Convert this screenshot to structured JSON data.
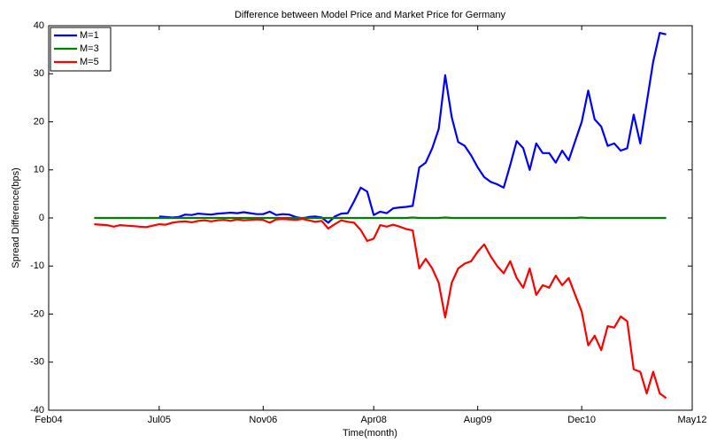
{
  "chart_data": {
    "type": "line",
    "title": "Difference between Model Price and Market Price for Germany",
    "xlabel": "Time(month)",
    "ylabel": "Spread Difference(bps)",
    "x": [
      "2004-09",
      "2004-10",
      "2004-11",
      "2004-12",
      "2005-01",
      "2005-02",
      "2005-03",
      "2005-04",
      "2005-05",
      "2005-06",
      "2005-07",
      "2005-08",
      "2005-09",
      "2005-10",
      "2005-11",
      "2005-12",
      "2006-01",
      "2006-02",
      "2006-03",
      "2006-04",
      "2006-05",
      "2006-06",
      "2006-07",
      "2006-08",
      "2006-09",
      "2006-10",
      "2006-11",
      "2006-12",
      "2007-01",
      "2007-02",
      "2007-03",
      "2007-04",
      "2007-05",
      "2007-06",
      "2007-07",
      "2007-08",
      "2007-09",
      "2007-10",
      "2007-11",
      "2007-12",
      "2008-01",
      "2008-02",
      "2008-03",
      "2008-04",
      "2008-05",
      "2008-06",
      "2008-07",
      "2008-08",
      "2008-09",
      "2008-10",
      "2008-11",
      "2008-12",
      "2009-01",
      "2009-02",
      "2009-03",
      "2009-04",
      "2009-05",
      "2009-06",
      "2009-07",
      "2009-08",
      "2009-09",
      "2009-10",
      "2009-11",
      "2009-12",
      "2010-01",
      "2010-02",
      "2010-03",
      "2010-04",
      "2010-05",
      "2010-06",
      "2010-07",
      "2010-08",
      "2010-09",
      "2010-10",
      "2010-11",
      "2010-12",
      "2011-01",
      "2011-02",
      "2011-03",
      "2011-04",
      "2011-05",
      "2011-06",
      "2011-07",
      "2011-08",
      "2011-09",
      "2011-10",
      "2011-11",
      "2011-12",
      "2012-01"
    ],
    "series": [
      {
        "name": "M=1",
        "color": "#0000ff",
        "values": [
          null,
          null,
          null,
          null,
          null,
          null,
          null,
          null,
          null,
          null,
          0.3,
          0.2,
          0.1,
          0.2,
          0.7,
          0.6,
          0.9,
          0.8,
          0.7,
          0.9,
          1.0,
          1.1,
          1.0,
          1.2,
          1.0,
          0.8,
          0.8,
          1.3,
          0.6,
          0.8,
          0.7,
          0.2,
          -0.1,
          0.2,
          0.3,
          0.1,
          -1.0,
          0.3,
          0.9,
          1.0,
          3.5,
          6.3,
          5.5,
          0.6,
          1.3,
          1.0,
          2.0,
          2.2,
          2.3,
          2.5,
          10.5,
          11.5,
          14.5,
          18.5,
          29.7,
          21,
          15.8,
          15,
          13,
          10.5,
          8.5,
          7.5,
          7,
          6.3,
          11,
          16,
          14.5,
          10,
          15.5,
          13.5,
          13.5,
          11.5,
          14,
          12,
          16,
          20,
          26.5,
          20.5,
          19,
          15,
          15.5,
          14,
          14.5,
          21.5,
          15.5,
          24,
          32.5,
          38.5,
          38.2
        ]
      },
      {
        "name": "M=3",
        "color": "#008000",
        "values": [
          0,
          0,
          0,
          0,
          0,
          0,
          0,
          0,
          0,
          0,
          0,
          0,
          0,
          0,
          0,
          0,
          0,
          0,
          0,
          0,
          0,
          0,
          0,
          0,
          0,
          0,
          0,
          0,
          0,
          0,
          0,
          0,
          0,
          0,
          0,
          0,
          0,
          0,
          0,
          0,
          0,
          0,
          0,
          0,
          0,
          0,
          0,
          0,
          0,
          0.1,
          0,
          0,
          0,
          0,
          0.1,
          0,
          0,
          0,
          0,
          0,
          0,
          0,
          0,
          0,
          0,
          0,
          0,
          0,
          0,
          0,
          0,
          0,
          0,
          0,
          0,
          0.1,
          0,
          0,
          0,
          0,
          0,
          0,
          0,
          0,
          0,
          0,
          0,
          0,
          0
        ]
      },
      {
        "name": "M=5",
        "color": "#ff0000",
        "values": [
          -1.3,
          -1.4,
          -1.5,
          -1.8,
          -1.5,
          -1.6,
          -1.7,
          -1.8,
          -1.9,
          -1.6,
          -1.3,
          -1.4,
          -1.0,
          -0.8,
          -0.7,
          -0.9,
          -0.6,
          -0.5,
          -0.7,
          -0.5,
          -0.4,
          -0.6,
          -0.3,
          -0.5,
          -0.4,
          -0.3,
          -0.4,
          -1.0,
          -0.3,
          -0.2,
          -0.3,
          -0.4,
          -0.2,
          -0.5,
          -0.8,
          -0.6,
          -2.2,
          -1.3,
          -0.5,
          -0.8,
          -1.0,
          -2.5,
          -4.8,
          -4.3,
          -1.5,
          -1.8,
          -1.4,
          -1.8,
          -2.3,
          -2.6,
          -10.5,
          -8.5,
          -10.5,
          -13.5,
          -20.7,
          -13.5,
          -10.5,
          -9.5,
          -9,
          -7,
          -5.5,
          -8,
          -10,
          -11.5,
          -9,
          -12.5,
          -14.5,
          -10.5,
          -16,
          -14,
          -14.5,
          -12,
          -14,
          -12.5,
          -16,
          -19.5,
          -26.5,
          -24.5,
          -27.5,
          -22.5,
          -22.8,
          -20.5,
          -21.5,
          -31.5,
          -32,
          -36.5,
          -32,
          -36.5,
          -37.5
        ]
      }
    ],
    "xlim": [
      "2004-02",
      "2012-05"
    ],
    "xticks": [
      {
        "value": "2004-02",
        "label": "Feb04"
      },
      {
        "value": "2005-07",
        "label": "Jul05"
      },
      {
        "value": "2006-11",
        "label": "Nov06"
      },
      {
        "value": "2008-04",
        "label": "Apr08"
      },
      {
        "value": "2009-08",
        "label": "Aug09"
      },
      {
        "value": "2010-12",
        "label": "Dec10"
      },
      {
        "value": "2012-05",
        "label": "May12"
      }
    ],
    "ylim": [
      -40,
      40
    ],
    "yticks": [
      -40,
      -30,
      -20,
      -10,
      0,
      10,
      20,
      30,
      40
    ],
    "legend": "top-left",
    "grid": false
  }
}
